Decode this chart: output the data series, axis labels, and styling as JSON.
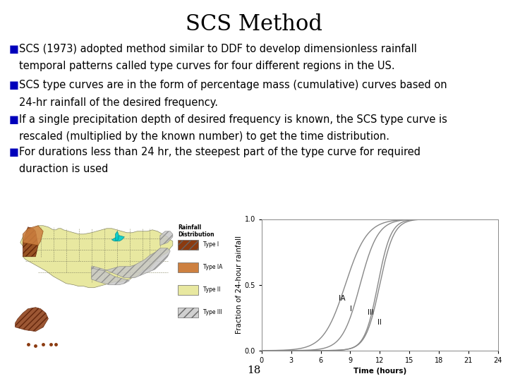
{
  "title": "SCS Method",
  "title_fontsize": 22,
  "title_font": "serif",
  "background_color": "#ffffff",
  "bullet_color": "#0000bb",
  "bullet_char": "■",
  "text_fontsize": 10.5,
  "text_font": "DejaVu Sans",
  "bullets": [
    [
      "SCS (1973) adopted method similar to DDF to develop dimensionless rainfall",
      "temporal patterns called type curves for four different regions in the US."
    ],
    [
      "SCS type curves are in the form of percentage mass (cumulative) curves based on",
      "24-hr rainfall of the desired frequency."
    ],
    [
      "If a single precipitation depth of desired frequency is known, the SCS type curve is",
      "rescaled (multiplied by the known number) to get the time distribution."
    ],
    [
      "For durations less than 24 hr, the steepest part of the type curve for required",
      "duraction is used"
    ]
  ],
  "page_number": "18",
  "ylabel_graph": "Fraction of 24-hour rainfall",
  "xlabel_graph": "Time (hours)",
  "xticks_graph": [
    0,
    3,
    6,
    9,
    12,
    15,
    18,
    21,
    24
  ],
  "yticks_graph": [
    0.0,
    0.5,
    1.0
  ],
  "curve_color": "#888888",
  "map_bg": "#fffff0",
  "legend_title": "Rainfall\nDistribution",
  "legend_items": [
    "Type I",
    "Type IA",
    "Type II",
    "Type III"
  ],
  "legend_colors": [
    "#8B3A10",
    "#CD8040",
    "#e8e8a0",
    "#d0d0d0"
  ],
  "legend_hatches": [
    "///",
    "",
    "",
    "///"
  ]
}
